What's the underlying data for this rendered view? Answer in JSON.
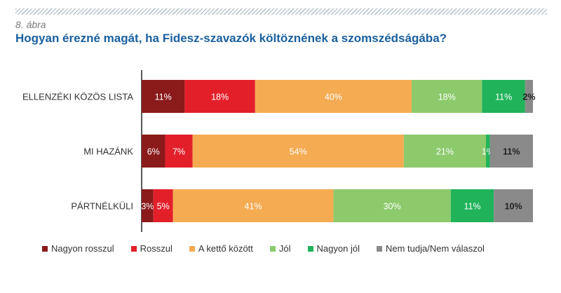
{
  "figure": {
    "label": "8. ábra",
    "title": "Hogyan érezné magát, ha Fidesz-szavazók költöznének a szomszédságába?"
  },
  "chart_data": {
    "type": "bar",
    "orientation": "horizontal",
    "stacked": true,
    "categories": [
      "ELLENZÉKI KÖZÖS LISTA",
      "MI HAZÁNK",
      "PÁRTNÉLKÜLI"
    ],
    "series": [
      {
        "name": "Nagyon rosszul",
        "color": "#8b1a1a",
        "text_color": "#ffffff",
        "values": [
          11,
          6,
          3
        ],
        "labels": [
          "11%",
          "6%",
          "3%"
        ]
      },
      {
        "name": "Rosszul",
        "color": "#e3202a",
        "text_color": "#ffffff",
        "values": [
          18,
          7,
          5
        ],
        "labels": [
          "18%",
          "7%",
          "5%"
        ]
      },
      {
        "name": "A kettő között",
        "color": "#f5ab52",
        "text_color": "#ffffff",
        "values": [
          40,
          54,
          41
        ],
        "labels": [
          "40%",
          "54%",
          "41%"
        ]
      },
      {
        "name": "Jól",
        "color": "#8cca6c",
        "text_color": "#ffffff",
        "values": [
          18,
          21,
          30
        ],
        "labels": [
          "18%",
          "21%",
          "30%"
        ]
      },
      {
        "name": "Nagyon jól",
        "color": "#20b35a",
        "text_color": "#ffffff",
        "values": [
          11,
          1,
          11
        ],
        "labels": [
          "11%",
          "1%",
          "11%"
        ]
      },
      {
        "name": "Nem tudja/Nem válaszol",
        "color": "#8a8a8a",
        "text_color": "#222222",
        "values": [
          2,
          11,
          10
        ],
        "labels": [
          "2%",
          "11%",
          "10%"
        ]
      }
    ],
    "xlim": [
      0,
      100
    ],
    "grid": false,
    "legend_position": "bottom"
  }
}
